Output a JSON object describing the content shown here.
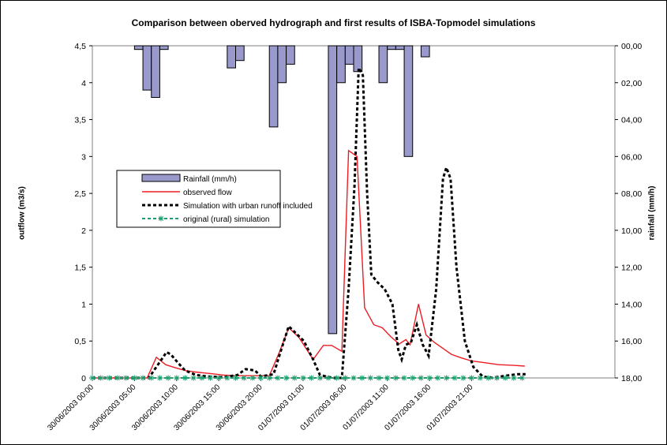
{
  "chart_data": {
    "type": "bar+line",
    "title": "Comparison between oberved hydrograph and first results of  ISBA-Topmodel simulations",
    "ylabel_left": "outflow (m3/s)",
    "ylabel_right": "rainfall (mm/h)",
    "ylim_left": [
      0,
      4.5
    ],
    "yticks_left": [
      "0",
      "0,5",
      "1",
      "1,5",
      "2",
      "2,5",
      "3",
      "3,5",
      "4",
      "4,5"
    ],
    "ylim_right": [
      0,
      18
    ],
    "yticks_right": [
      "00,00",
      "02,00",
      "04,00",
      "06,00",
      "08,00",
      "10,00",
      "12,00",
      "14,00",
      "16,00",
      "18,00"
    ],
    "right_axis_inverted": true,
    "x_unit": "hours since first tick",
    "xlim": [
      0,
      62
    ],
    "xticks": [
      {
        "h": 0,
        "label": "30/06/2003 00:00"
      },
      {
        "h": 5,
        "label": "30/06/2003 05:00"
      },
      {
        "h": 10,
        "label": "30/06/2003 10:00"
      },
      {
        "h": 15,
        "label": "30/06/2003 15:00"
      },
      {
        "h": 20,
        "label": "30/06/2003 20:00"
      },
      {
        "h": 25,
        "label": "01/07/2003 01:00"
      },
      {
        "h": 30,
        "label": "01/07/2003 06:00"
      },
      {
        "h": 35,
        "label": "01/07/2003 11:00"
      },
      {
        "h": 40,
        "label": "01/07/2003 16:00"
      },
      {
        "h": 45,
        "label": "01/07/2003 21:00"
      }
    ],
    "legend": [
      {
        "name": "Rainfall (mm/h)",
        "kind": "bar"
      },
      {
        "name": "observed flow",
        "kind": "solid"
      },
      {
        "name": "Simulation with urban runoff included",
        "kind": "dashed"
      },
      {
        "name": "original (rural) simulation",
        "kind": "star"
      }
    ],
    "legend_position": "left, middle",
    "colors": {
      "rain": "#9999cc",
      "observed": "#ee1c24",
      "urban": "#000000",
      "rural": "#1e9e6e"
    },
    "rainfall": [
      {
        "h": 5.5,
        "v": 0.2
      },
      {
        "h": 6.5,
        "v": 2.4
      },
      {
        "h": 7.5,
        "v": 2.8
      },
      {
        "h": 8.5,
        "v": 0.2
      },
      {
        "h": 16.5,
        "v": 1.2
      },
      {
        "h": 17.5,
        "v": 0.8
      },
      {
        "h": 21.5,
        "v": 4.4
      },
      {
        "h": 22.5,
        "v": 2.0
      },
      {
        "h": 23.5,
        "v": 1.0
      },
      {
        "h": 28.5,
        "v": 15.6
      },
      {
        "h": 29.5,
        "v": 2.0
      },
      {
        "h": 30.5,
        "v": 1.0
      },
      {
        "h": 31.5,
        "v": 1.4
      },
      {
        "h": 34.5,
        "v": 2.0
      },
      {
        "h": 35.5,
        "v": 0.2
      },
      {
        "h": 36.5,
        "v": 0.2
      },
      {
        "h": 37.5,
        "v": 6.0
      },
      {
        "h": 39.5,
        "v": 0.6
      }
    ],
    "observed_flow": [
      [
        0,
        0
      ],
      [
        6.5,
        0
      ],
      [
        7.6,
        0.28
      ],
      [
        8.7,
        0.18
      ],
      [
        9.8,
        0.14
      ],
      [
        11,
        0.1
      ],
      [
        12.2,
        0.08
      ],
      [
        14,
        0.06
      ],
      [
        15.5,
        0.04
      ],
      [
        17,
        0.03
      ],
      [
        19,
        0.03
      ],
      [
        21,
        0.03
      ],
      [
        22.2,
        0.35
      ],
      [
        23.3,
        0.68
      ],
      [
        24.5,
        0.55
      ],
      [
        26.2,
        0.25
      ],
      [
        27.4,
        0.44
      ],
      [
        28.4,
        0.44
      ],
      [
        29.6,
        0.36
      ],
      [
        30.4,
        3.08
      ],
      [
        31.4,
        3.0
      ],
      [
        32.3,
        0.95
      ],
      [
        33.4,
        0.72
      ],
      [
        34.4,
        0.68
      ],
      [
        35.4,
        0.56
      ],
      [
        36.4,
        0.46
      ],
      [
        37.2,
        0.52
      ],
      [
        37.7,
        0.45
      ],
      [
        38.7,
        1.0
      ],
      [
        39.6,
        0.58
      ],
      [
        40.6,
        0.48
      ],
      [
        41.6,
        0.4
      ],
      [
        42.6,
        0.32
      ],
      [
        43.8,
        0.27
      ],
      [
        45,
        0.23
      ],
      [
        46.4,
        0.21
      ],
      [
        48.2,
        0.18
      ],
      [
        50,
        0.17
      ],
      [
        51.3,
        0.16
      ]
    ],
    "urban_simulation": [
      [
        0,
        0
      ],
      [
        6.7,
        0
      ],
      [
        7.9,
        0.2
      ],
      [
        8.8,
        0.35
      ],
      [
        9.3,
        0.32
      ],
      [
        10.2,
        0.2
      ],
      [
        11,
        0.1
      ],
      [
        12.3,
        0.04
      ],
      [
        13.6,
        0.02
      ],
      [
        15.5,
        0.01
      ],
      [
        17.2,
        0.04
      ],
      [
        18.2,
        0.12
      ],
      [
        19.3,
        0.1
      ],
      [
        20,
        0.02
      ],
      [
        21.5,
        0.05
      ],
      [
        22.4,
        0.38
      ],
      [
        23.3,
        0.7
      ],
      [
        24.2,
        0.6
      ],
      [
        25.1,
        0.5
      ],
      [
        26.2,
        0.25
      ],
      [
        27,
        0.04
      ],
      [
        28.5,
        0.0
      ],
      [
        29.6,
        0.0
      ],
      [
        30.4,
        1.2
      ],
      [
        31.1,
        2.6
      ],
      [
        31.6,
        4.2
      ],
      [
        32.1,
        4.1
      ],
      [
        32.6,
        2.5
      ],
      [
        33.1,
        1.4
      ],
      [
        33.8,
        1.3
      ],
      [
        34.7,
        1.2
      ],
      [
        35.6,
        1.0
      ],
      [
        36.3,
        0.38
      ],
      [
        36.7,
        0.25
      ],
      [
        37.2,
        0.45
      ],
      [
        37.8,
        0.48
      ],
      [
        38.5,
        0.72
      ],
      [
        39.2,
        0.45
      ],
      [
        39.9,
        0.3
      ],
      [
        40.8,
        1.2
      ],
      [
        41.6,
        2.7
      ],
      [
        42,
        2.85
      ],
      [
        42.5,
        2.7
      ],
      [
        43.2,
        1.5
      ],
      [
        44.2,
        0.5
      ],
      [
        45.2,
        0.15
      ],
      [
        46.3,
        0.02
      ],
      [
        47.5,
        0.0
      ],
      [
        49,
        0.03
      ],
      [
        50.5,
        0.05
      ],
      [
        51.4,
        0.05
      ]
    ],
    "rural_simulation": {
      "value": 0,
      "h_start": 0,
      "h_end": 51,
      "step": 1
    }
  }
}
